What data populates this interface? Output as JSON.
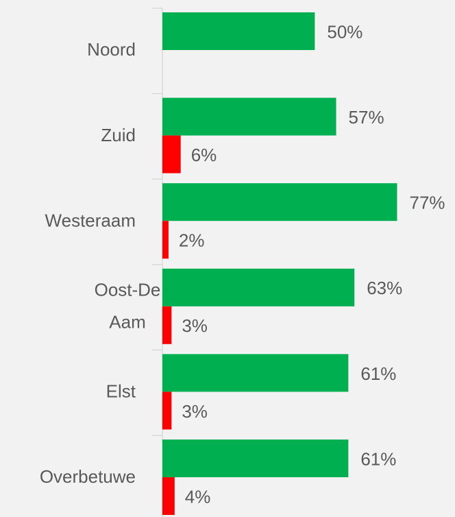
{
  "chart_data": {
    "type": "barh",
    "categories": [
      "Noord",
      "Zuid",
      "Westeraam",
      "Oost-De Aam",
      "Elst",
      "Overbetuwe"
    ],
    "series": [
      {
        "color": "#00b050",
        "values": [
          50,
          57,
          77,
          63,
          61,
          61
        ],
        "value_labels": [
          "50%",
          "57%",
          "77%",
          "63%",
          "61%",
          "61%"
        ]
      },
      {
        "color": "#ff0000",
        "values": [
          null,
          6,
          2,
          3,
          3,
          4
        ],
        "value_labels": [
          null,
          "6%",
          "2%",
          "3%",
          "3%",
          "4%"
        ]
      }
    ],
    "xlim": [
      0,
      96
    ]
  }
}
